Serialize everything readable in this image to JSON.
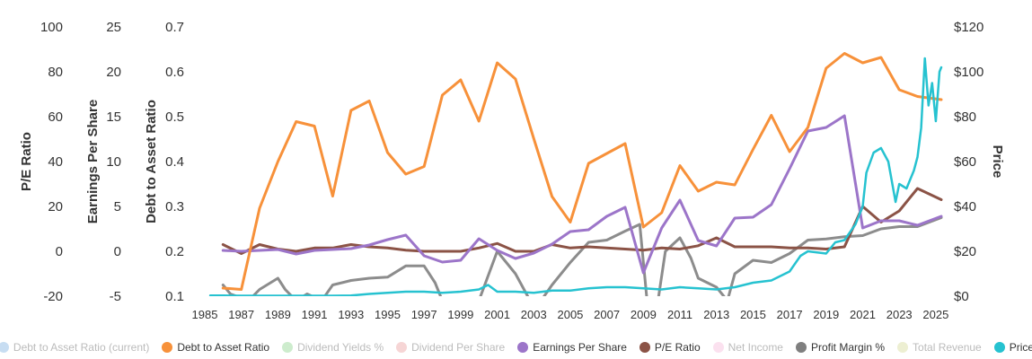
{
  "chart_data": {
    "type": "line",
    "years": [
      1986,
      1987,
      1988,
      1989,
      1990,
      1991,
      1992,
      1993,
      1994,
      1995,
      1996,
      1997,
      1998,
      1999,
      2000,
      2001,
      2002,
      2003,
      2004,
      2005,
      2006,
      2007,
      2008,
      2009,
      2010,
      2011,
      2012,
      2013,
      2014,
      2015,
      2016,
      2017,
      2018,
      2019,
      2020,
      2021,
      2022,
      2023,
      2024,
      2025
    ],
    "x_ticks": [
      "1985",
      "1987",
      "1989",
      "1991",
      "1993",
      "1995",
      "1997",
      "1999",
      "2001",
      "2003",
      "2005",
      "2007",
      "2009",
      "2011",
      "2013",
      "2015",
      "2017",
      "2019",
      "2021",
      "2023",
      "2025"
    ],
    "axes": {
      "pe": {
        "title": "P/E Ratio",
        "ticks": [
          "-20",
          "0",
          "20",
          "40",
          "60",
          "80",
          "100"
        ],
        "range": [
          -20,
          100
        ]
      },
      "eps": {
        "title": "Earnings Per Share",
        "ticks": [
          "-5",
          "0",
          "5",
          "10",
          "15",
          "20",
          "25"
        ],
        "range": [
          -5,
          25
        ]
      },
      "debt": {
        "title": "Debt to Asset Ratio",
        "ticks": [
          "0.1",
          "0.2",
          "0.3",
          "0.4",
          "0.5",
          "0.6",
          "0.7"
        ],
        "range": [
          0.1,
          0.7
        ]
      },
      "price": {
        "title": "Price",
        "ticks": [
          "$0",
          "$20",
          "$40",
          "$60",
          "$80",
          "$100",
          "$120"
        ],
        "range": [
          0,
          120
        ]
      }
    },
    "series": [
      {
        "name": "Debt to Asset Ratio",
        "axis": "debt",
        "color": "#f7913a",
        "x": [
          1986,
          1987,
          1988,
          1989,
          1990,
          1991,
          1992,
          1993,
          1994,
          1995,
          1996,
          1997,
          1998,
          1999,
          2000,
          2001,
          2002,
          2003,
          2004,
          2005,
          2006,
          2007,
          2008,
          2009,
          2010,
          2011,
          2012,
          2013,
          2014,
          2015,
          2016,
          2017,
          2018,
          2019,
          2020,
          2021,
          2022,
          2023,
          2024,
          2025.3
        ],
        "values": [
          0.118,
          0.115,
          0.296,
          0.4,
          0.489,
          0.479,
          0.323,
          0.514,
          0.535,
          0.42,
          0.372,
          0.389,
          0.548,
          0.582,
          0.49,
          0.62,
          0.584,
          0.451,
          0.322,
          0.265,
          0.396,
          0.418,
          0.44,
          0.254,
          0.286,
          0.391,
          0.334,
          0.354,
          0.348,
          0.427,
          0.503,
          0.422,
          0.476,
          0.608,
          0.641,
          0.62,
          0.632,
          0.56,
          0.545,
          0.538
        ]
      },
      {
        "name": "Earnings Per Share",
        "axis": "eps",
        "color": "#9c75c9",
        "x": [
          1986,
          1987,
          1988,
          1989,
          1990,
          1991,
          1992,
          1993,
          1994,
          1995,
          1996,
          1997,
          1998,
          1999,
          2000,
          2001,
          2002,
          2003,
          2004,
          2005,
          2006,
          2007,
          2008,
          2009,
          2010,
          2011,
          2012,
          2013,
          2014,
          2015,
          2016,
          2017,
          2018,
          2019,
          2020,
          2021,
          2022,
          2023,
          2024,
          2025.3
        ],
        "values": [
          0.1,
          0.0,
          0.1,
          0.2,
          -0.3,
          0.1,
          0.2,
          0.3,
          0.7,
          1.3,
          1.8,
          -0.5,
          -1.2,
          -1.0,
          1.4,
          0.1,
          -0.8,
          -0.2,
          0.8,
          2.2,
          2.4,
          3.9,
          4.9,
          -2.4,
          2.6,
          5.7,
          1.2,
          0.6,
          3.7,
          3.8,
          5.2,
          9.2,
          13.4,
          13.8,
          15.1,
          2.6,
          3.4,
          3.4,
          2.9,
          3.9
        ]
      },
      {
        "name": "P/E Ratio",
        "axis": "pe",
        "color": "#8b5346",
        "x": [
          1986,
          1987,
          1988,
          1989,
          1990,
          1991,
          1992,
          1993,
          1994,
          1995,
          1996,
          1997,
          1998,
          1999,
          2000,
          2001,
          2002,
          2003,
          2004,
          2005,
          2006,
          2007,
          2008,
          2009,
          2010,
          2011,
          2012,
          2013,
          2014,
          2015,
          2016,
          2017,
          2018,
          2019,
          2020,
          2021,
          2022,
          2023,
          2024,
          2025.3
        ],
        "values": [
          3,
          -1,
          3,
          1,
          0,
          1.5,
          1.5,
          3,
          2,
          1.5,
          0.5,
          0,
          0,
          0,
          1.5,
          3.5,
          0,
          0,
          3,
          1.5,
          2,
          1.5,
          1,
          0.5,
          1.5,
          1.0,
          2.5,
          6,
          2,
          2,
          2,
          1.5,
          1.5,
          1,
          2,
          20,
          13,
          18,
          28,
          23
        ]
      },
      {
        "name": "Profit Margin %",
        "axis": "pe",
        "color": "#8c8c8c",
        "x": [
          1986,
          1986.4,
          1987.4,
          1988,
          1989,
          1989.4,
          1990,
          1990.6,
          1991.4,
          1992,
          1993,
          1994,
          1995,
          1996,
          1996.4,
          1997,
          1997.6,
          1998,
          1999,
          2000,
          2001,
          2002,
          2002.8,
          2003.4,
          2004,
          2005,
          2006,
          2007,
          2008,
          2008.8,
          2009.2,
          2009.8,
          2010.2,
          2011,
          2011.6,
          2012,
          2013,
          2013.6,
          2014,
          2015,
          2016,
          2017,
          2018,
          2019,
          2020,
          2021,
          2022,
          2023,
          2024,
          2025.3
        ],
        "values": [
          -15,
          -19,
          -22,
          -17,
          -12,
          -17,
          -22,
          -19,
          -22,
          -15,
          -13,
          -12,
          -11.5,
          -6.5,
          -6.5,
          -6.5,
          -14,
          -22,
          -22,
          -22,
          0,
          -10,
          -22,
          -22,
          -15,
          -5,
          4,
          5,
          9,
          12,
          -22,
          -22,
          0,
          6,
          -3,
          -12,
          -16,
          -22,
          -10,
          -4,
          -5,
          -1,
          5,
          5.5,
          6.5,
          7,
          10,
          11,
          11,
          15
        ]
      },
      {
        "name": "Price",
        "axis": "price",
        "color": "#26c2d0",
        "x": [
          1985.3,
          1986,
          1987,
          1988,
          1989,
          1990,
          1991,
          1992,
          1993,
          1994,
          1995,
          1996,
          1997,
          1998,
          1999,
          2000,
          2000.5,
          2001,
          2002,
          2003,
          2004,
          2005,
          2006,
          2007,
          2008,
          2009,
          2010,
          2011,
          2012,
          2013,
          2014,
          2015,
          2016,
          2017,
          2017.6,
          2018,
          2019,
          2019.5,
          2020,
          2020.6,
          2021,
          2021.2,
          2021.6,
          2022,
          2022.4,
          2022.8,
          2023,
          2023.4,
          2023.8,
          2024,
          2024.2,
          2024.4,
          2024.6,
          2024.8,
          2025,
          2025.2,
          2025.3
        ],
        "values": [
          0.3,
          0.3,
          0.2,
          0.2,
          0.2,
          0.2,
          0.2,
          0.2,
          0.3,
          1,
          1.5,
          2,
          2,
          1.5,
          2,
          3,
          5,
          2,
          2,
          1.5,
          2.5,
          2.5,
          3.5,
          4,
          4,
          3.5,
          3,
          4,
          3.5,
          3,
          4,
          6,
          7,
          11,
          18,
          20,
          19,
          24,
          25,
          32,
          40,
          55,
          64,
          66,
          60,
          42,
          50,
          48,
          56,
          62,
          75,
          106,
          85,
          95,
          78,
          100,
          102
        ]
      }
    ],
    "legend": [
      {
        "label": "Debt to Asset Ratio (current)",
        "color": "#c7ddf2",
        "active": false
      },
      {
        "label": "Debt to Asset Ratio",
        "color": "#f7913a",
        "active": true
      },
      {
        "label": "Dividend Yields %",
        "color": "#cdeccd",
        "active": false
      },
      {
        "label": "Dividend Per Share",
        "color": "#f6d5d5",
        "active": false
      },
      {
        "label": "Earnings Per Share",
        "color": "#9c75c9",
        "active": true
      },
      {
        "label": "P/E Ratio",
        "color": "#8b5346",
        "active": true
      },
      {
        "label": "Net Income",
        "color": "#fbe1ef",
        "active": false
      },
      {
        "label": "Profit Margin %",
        "color": "#7f7f7f",
        "active": true
      },
      {
        "label": "Total Revenue",
        "color": "#edefd2",
        "active": false
      },
      {
        "label": "Price",
        "color": "#26c2d0",
        "active": true
      }
    ]
  }
}
